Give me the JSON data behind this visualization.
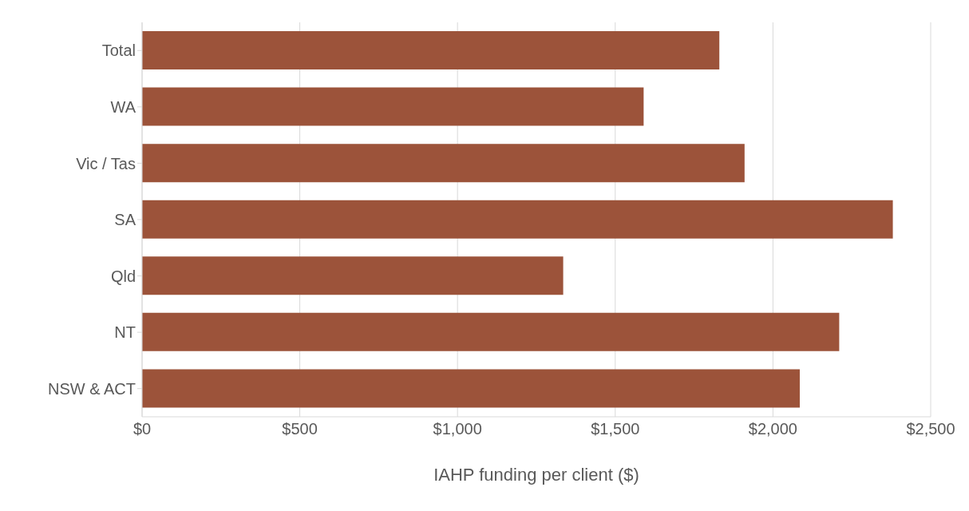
{
  "chart_data": {
    "type": "bar",
    "orientation": "horizontal",
    "xlabel": "IAHP funding per client ($)",
    "categories": [
      "Total",
      "WA",
      "Vic / Tas",
      "SA",
      "Qld",
      "NT",
      "NSW & ACT"
    ],
    "values": [
      1830,
      1590,
      1910,
      2380,
      1335,
      2210,
      2085
    ],
    "color": "#9c533a",
    "xlim": [
      0,
      2500
    ],
    "xticks": [
      {
        "value": 0,
        "label": "$0"
      },
      {
        "value": 500,
        "label": "$500"
      },
      {
        "value": 1000,
        "label": "$1,000"
      },
      {
        "value": 1500,
        "label": "$1,500"
      },
      {
        "value": 2000,
        "label": "$2,000"
      },
      {
        "value": 2500,
        "label": "$2,500"
      }
    ],
    "grid": "x"
  }
}
